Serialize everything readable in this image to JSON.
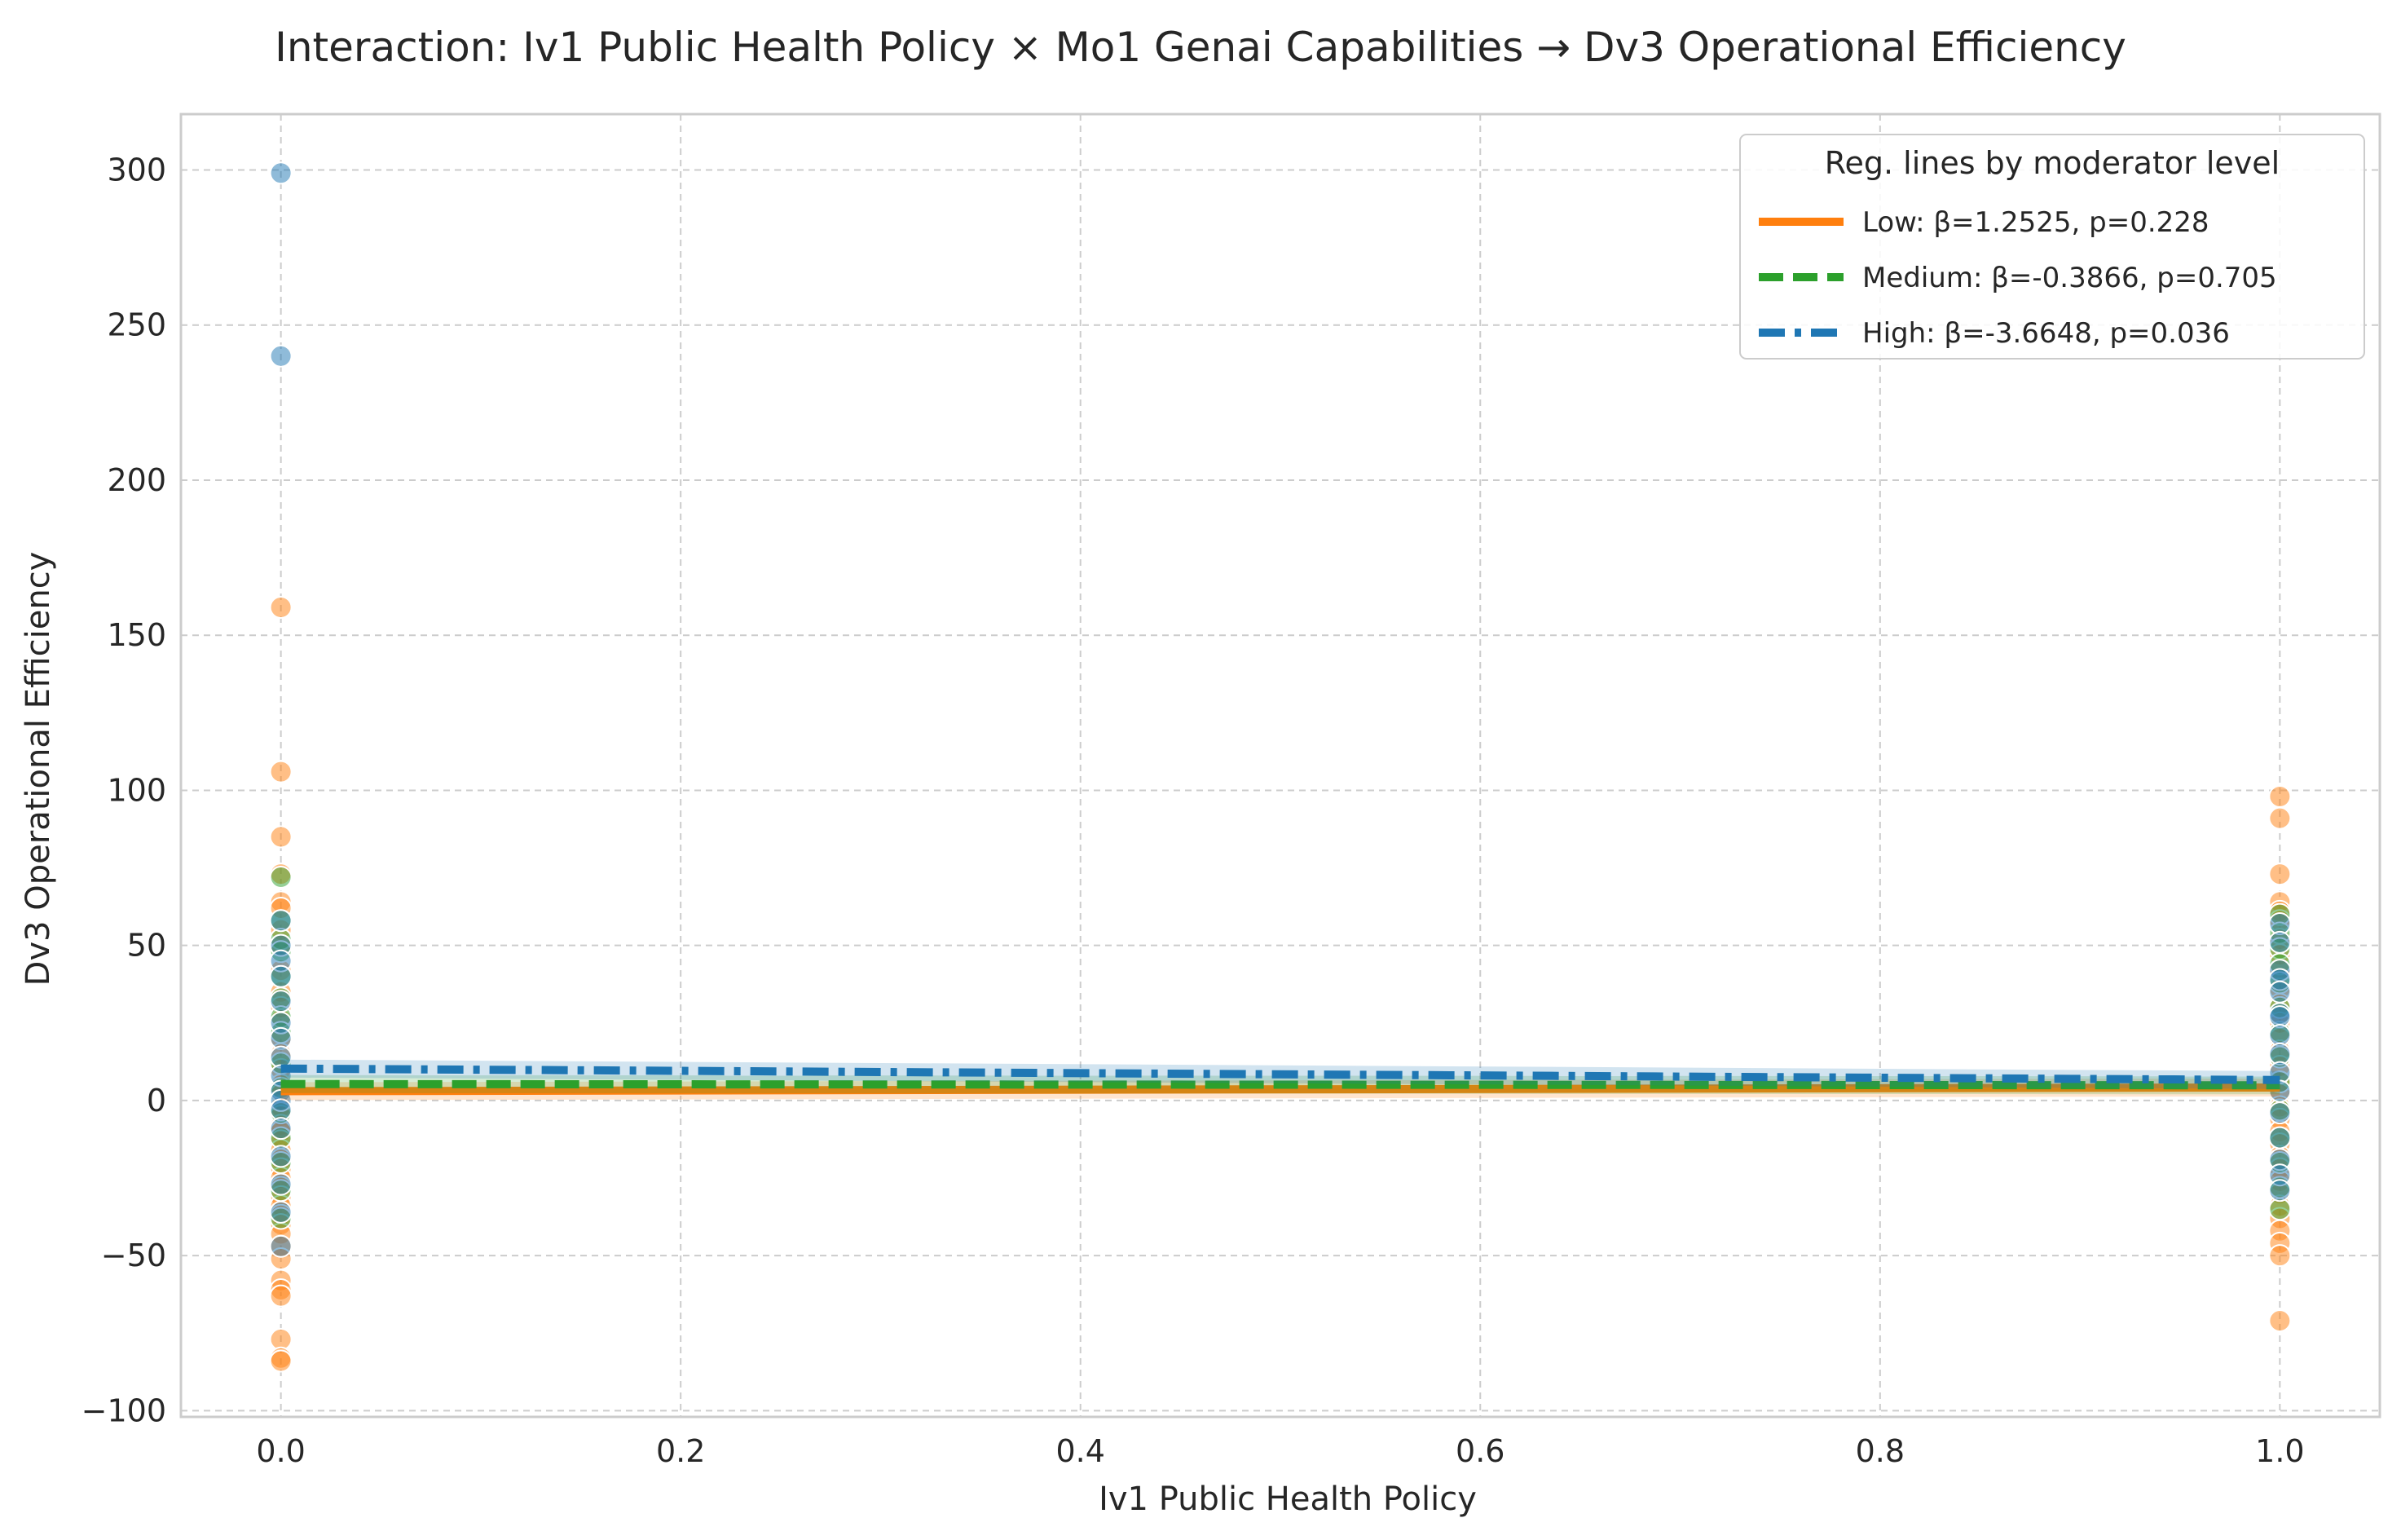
{
  "chart_data": {
    "type": "scatter",
    "title": "Interaction: Iv1 Public Health Policy × Mo1 Genai Capabilities → Dv3 Operational Efficiency",
    "xlabel": "Iv1 Public Health Policy",
    "ylabel": "Dv3 Operational Efficiency",
    "xlim": [
      -0.05,
      1.05
    ],
    "ylim": [
      -102,
      318
    ],
    "x_ticks": [
      0.0,
      0.2,
      0.4,
      0.6,
      0.8,
      1.0
    ],
    "x_tick_labels": [
      "0.0",
      "0.2",
      "0.4",
      "0.6",
      "0.8",
      "1.0"
    ],
    "y_ticks": [
      -100,
      -50,
      0,
      50,
      100,
      150,
      200,
      250,
      300
    ],
    "y_tick_labels": [
      "−100",
      "−50",
      "0",
      "50",
      "100",
      "150",
      "200",
      "250",
      "300"
    ],
    "grid": true,
    "legend": {
      "title": "Reg. lines by moderator level",
      "placement": "top-right"
    },
    "series": [
      {
        "name": "Low: β=1.2525, p=0.228",
        "level": "Low",
        "color": "#ff7f0e",
        "line_style": "solid",
        "line": {
          "x": [
            0.0,
            1.0
          ],
          "y": [
            3.0,
            4.2
          ]
        },
        "points": [
          {
            "x": 0,
            "y": 159
          },
          {
            "x": 0,
            "y": 106
          },
          {
            "x": 0,
            "y": 85
          },
          {
            "x": 0,
            "y": 73
          },
          {
            "x": 0,
            "y": 64
          },
          {
            "x": 0,
            "y": 62
          },
          {
            "x": 0,
            "y": 55
          },
          {
            "x": 0,
            "y": 50
          },
          {
            "x": 0,
            "y": 42
          },
          {
            "x": 0,
            "y": 35
          },
          {
            "x": 0,
            "y": 30
          },
          {
            "x": 0,
            "y": 26
          },
          {
            "x": 0,
            "y": 20
          },
          {
            "x": 0,
            "y": 15
          },
          {
            "x": 0,
            "y": 10
          },
          {
            "x": 0,
            "y": 5
          },
          {
            "x": 0,
            "y": 2
          },
          {
            "x": 0,
            "y": -2
          },
          {
            "x": 0,
            "y": -5
          },
          {
            "x": 0,
            "y": -8
          },
          {
            "x": 0,
            "y": -10
          },
          {
            "x": 0,
            "y": -13
          },
          {
            "x": 0,
            "y": -16
          },
          {
            "x": 0,
            "y": -19
          },
          {
            "x": 0,
            "y": -22
          },
          {
            "x": 0,
            "y": -25
          },
          {
            "x": 0,
            "y": -28
          },
          {
            "x": 0,
            "y": -31
          },
          {
            "x": 0,
            "y": -34
          },
          {
            "x": 0,
            "y": -37
          },
          {
            "x": 0,
            "y": -40
          },
          {
            "x": 0,
            "y": -43
          },
          {
            "x": 0,
            "y": -47
          },
          {
            "x": 0,
            "y": -51
          },
          {
            "x": 0,
            "y": -58
          },
          {
            "x": 0,
            "y": -61
          },
          {
            "x": 0,
            "y": -63
          },
          {
            "x": 0,
            "y": -77
          },
          {
            "x": 0,
            "y": -83
          },
          {
            "x": 0,
            "y": -84
          },
          {
            "x": 1,
            "y": 98
          },
          {
            "x": 1,
            "y": 91
          },
          {
            "x": 1,
            "y": 73
          },
          {
            "x": 1,
            "y": 64
          },
          {
            "x": 1,
            "y": 61
          },
          {
            "x": 1,
            "y": 58
          },
          {
            "x": 1,
            "y": 52
          },
          {
            "x": 1,
            "y": 47
          },
          {
            "x": 1,
            "y": 42
          },
          {
            "x": 1,
            "y": 36
          },
          {
            "x": 1,
            "y": 31
          },
          {
            "x": 1,
            "y": 25
          },
          {
            "x": 1,
            "y": 20
          },
          {
            "x": 1,
            "y": 16
          },
          {
            "x": 1,
            "y": 11
          },
          {
            "x": 1,
            "y": 6
          },
          {
            "x": 1,
            "y": 2
          },
          {
            "x": 1,
            "y": -2
          },
          {
            "x": 1,
            "y": -6
          },
          {
            "x": 1,
            "y": -10
          },
          {
            "x": 1,
            "y": -14
          },
          {
            "x": 1,
            "y": -18
          },
          {
            "x": 1,
            "y": -22
          },
          {
            "x": 1,
            "y": -26
          },
          {
            "x": 1,
            "y": -30
          },
          {
            "x": 1,
            "y": -34
          },
          {
            "x": 1,
            "y": -38
          },
          {
            "x": 1,
            "y": -42
          },
          {
            "x": 1,
            "y": -46
          },
          {
            "x": 1,
            "y": -50
          },
          {
            "x": 1,
            "y": -71
          }
        ]
      },
      {
        "name": "Medium: β=-0.3866, p=0.705",
        "level": "Medium",
        "color": "#2ca02c",
        "line_style": "dashed",
        "line": {
          "x": [
            0.0,
            1.0
          ],
          "y": [
            5.3,
            4.9
          ]
        },
        "points": [
          {
            "x": 0,
            "y": 72
          },
          {
            "x": 0,
            "y": 58
          },
          {
            "x": 0,
            "y": 52
          },
          {
            "x": 0,
            "y": 48
          },
          {
            "x": 0,
            "y": 40
          },
          {
            "x": 0,
            "y": 33
          },
          {
            "x": 0,
            "y": 27
          },
          {
            "x": 0,
            "y": 22
          },
          {
            "x": 0,
            "y": 12
          },
          {
            "x": 0,
            "y": 4
          },
          {
            "x": 0,
            "y": -4
          },
          {
            "x": 0,
            "y": -12
          },
          {
            "x": 0,
            "y": -20
          },
          {
            "x": 0,
            "y": -29
          },
          {
            "x": 0,
            "y": -38
          },
          {
            "x": 1,
            "y": 60
          },
          {
            "x": 1,
            "y": 54
          },
          {
            "x": 1,
            "y": 49
          },
          {
            "x": 1,
            "y": 44
          },
          {
            "x": 1,
            "y": 38
          },
          {
            "x": 1,
            "y": 30
          },
          {
            "x": 1,
            "y": 22
          },
          {
            "x": 1,
            "y": 14
          },
          {
            "x": 1,
            "y": 6
          },
          {
            "x": 1,
            "y": -3
          },
          {
            "x": 1,
            "y": -12
          },
          {
            "x": 1,
            "y": -20
          },
          {
            "x": 1,
            "y": -28
          },
          {
            "x": 1,
            "y": -35
          }
        ]
      },
      {
        "name": "High: β=-3.6648, p=0.036",
        "level": "High",
        "color": "#1f77b4",
        "line_style": "dashdot",
        "line": {
          "x": [
            0.0,
            1.0
          ],
          "y": [
            10.3,
            6.6
          ]
        },
        "points": [
          {
            "x": 0,
            "y": 299
          },
          {
            "x": 0,
            "y": 240
          },
          {
            "x": 0,
            "y": 58
          },
          {
            "x": 0,
            "y": 50
          },
          {
            "x": 0,
            "y": 45
          },
          {
            "x": 0,
            "y": 40
          },
          {
            "x": 0,
            "y": 32
          },
          {
            "x": 0,
            "y": 25
          },
          {
            "x": 0,
            "y": 20
          },
          {
            "x": 0,
            "y": 14
          },
          {
            "x": 0,
            "y": 8
          },
          {
            "x": 0,
            "y": 3
          },
          {
            "x": 0,
            "y": 0
          },
          {
            "x": 0,
            "y": -3
          },
          {
            "x": 0,
            "y": -9
          },
          {
            "x": 0,
            "y": -18
          },
          {
            "x": 0,
            "y": -27
          },
          {
            "x": 0,
            "y": -36
          },
          {
            "x": 0,
            "y": -47
          },
          {
            "x": 1,
            "y": 57
          },
          {
            "x": 1,
            "y": 51
          },
          {
            "x": 1,
            "y": 42
          },
          {
            "x": 1,
            "y": 39
          },
          {
            "x": 1,
            "y": 35
          },
          {
            "x": 1,
            "y": 28
          },
          {
            "x": 1,
            "y": 27
          },
          {
            "x": 1,
            "y": 21
          },
          {
            "x": 1,
            "y": 15
          },
          {
            "x": 1,
            "y": 9
          },
          {
            "x": 1,
            "y": 3
          },
          {
            "x": 1,
            "y": -4
          },
          {
            "x": 1,
            "y": -12
          },
          {
            "x": 1,
            "y": -19
          },
          {
            "x": 1,
            "y": -24
          },
          {
            "x": 1,
            "y": -29
          }
        ]
      }
    ]
  }
}
